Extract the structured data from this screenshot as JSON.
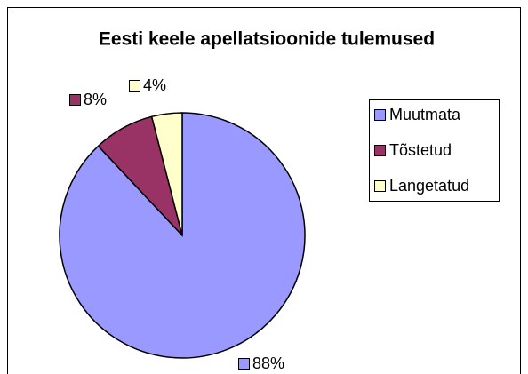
{
  "chart_data": {
    "type": "pie",
    "title": "Eesti keele apellatsioonide tulemused",
    "categories": [
      "Muutmata",
      "Tõstetud",
      "Langetatud"
    ],
    "values": [
      88,
      8,
      4
    ],
    "value_labels": [
      "88%",
      "8%",
      "4%"
    ],
    "colors": [
      "#9999ff",
      "#993366",
      "#ffffcc"
    ],
    "legend": "right"
  }
}
